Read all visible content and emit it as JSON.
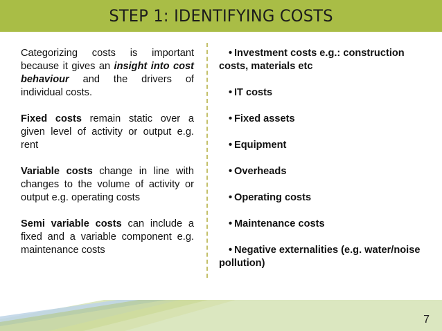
{
  "slide": {
    "title": "STEP 1: IDENTIFYING COSTS",
    "page_number": "7",
    "accent_color": "#a9bd46"
  },
  "left": {
    "p1": {
      "a": "Categorizing costs is important because it gives an ",
      "em": "insight into cost behaviour",
      "b": " and the drivers of individual costs."
    },
    "p2": {
      "term": "Fixed costs",
      "text": " remain static over a given level of activity or output e.g. rent"
    },
    "p3": {
      "term": "Variable costs",
      "text": " change in line with changes to the volume of activity or output e.g. operating costs"
    },
    "p4": {
      "term": "Semi variable costs",
      "text": " can include a fixed and a variable component e.g. maintenance costs"
    }
  },
  "right": {
    "bullet_char": "•",
    "items": [
      "Investment costs e.g.: construction costs, materials etc",
      "IT costs",
      "Fixed assets",
      "Equipment",
      "Overheads",
      "Operating costs",
      "Maintenance costs",
      "Negative externalities (e.g. water/noise pollution)"
    ]
  }
}
